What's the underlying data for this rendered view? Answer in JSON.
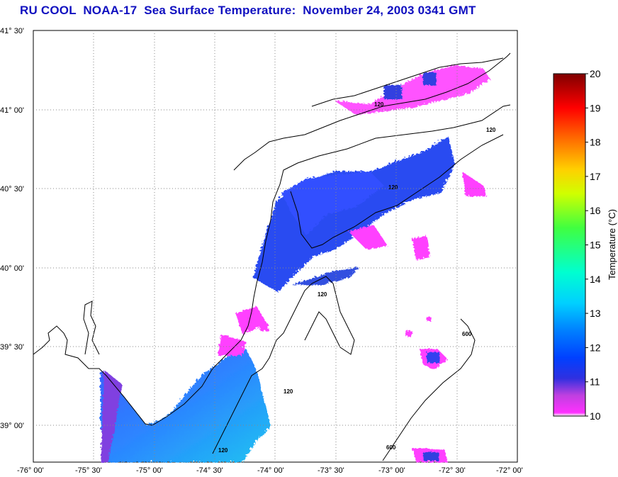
{
  "title": "RU COOL  NOAA-17  Sea Surface Temperature:  November 24, 2003 0341 GMT",
  "map": {
    "lat_labels": [
      "41° 30'",
      "41° 00'",
      "40° 30'",
      "40° 00'",
      "39° 30'",
      "39° 00'"
    ],
    "lon_labels": [
      "-76° 00'",
      "-75° 30'",
      "-75° 00'",
      "-74° 30'",
      "-74° 00'",
      "-73° 30'",
      "-73° 00'",
      "-72° 30'",
      "-72° 00'"
    ],
    "contour_labels": [
      "120",
      "120",
      "120",
      "120",
      "120",
      "120",
      "600",
      "600"
    ]
  },
  "colorbar": {
    "title": "Temperature (°C)",
    "ticks": [
      "20",
      "19",
      "18",
      "17",
      "16",
      "15",
      "14",
      "13",
      "12",
      "11",
      "10"
    ],
    "colors": [
      "#800000",
      "#ff0000",
      "#ff8c00",
      "#ffff00",
      "#80ff00",
      "#00ff80",
      "#00ffff",
      "#00a0ff",
      "#0030ff",
      "#0000c0",
      "#a020c0",
      "#ff00ff"
    ]
  }
}
